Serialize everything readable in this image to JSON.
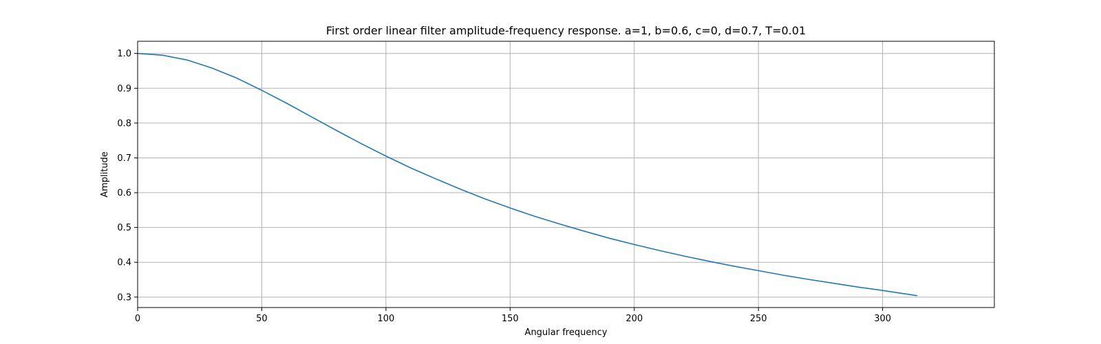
{
  "chart_data": {
    "type": "line",
    "title": "First order linear filter amplitude-frequency response. a=1, b=0.6, c=0, d=0.7, T=0.01",
    "xlabel": "Angular frequency",
    "ylabel": "Amplitude",
    "xlim": [
      0,
      345
    ],
    "ylim": [
      0.27,
      1.035
    ],
    "x_ticks": [
      0,
      50,
      100,
      150,
      200,
      250,
      300
    ],
    "y_ticks": [
      0.3,
      0.4,
      0.5,
      0.6,
      0.7,
      0.8,
      0.9,
      1.0
    ],
    "x_tick_labels": [
      "0",
      "50",
      "100",
      "150",
      "200",
      "250",
      "300"
    ],
    "y_tick_labels": [
      "0.3",
      "0.4",
      "0.5",
      "0.6",
      "0.7",
      "0.8",
      "0.9",
      "1.0"
    ],
    "grid": true,
    "series": [
      {
        "color": "#1f77b4",
        "x": [
          0,
          10,
          20,
          30,
          40,
          50,
          60,
          70,
          80,
          90,
          100,
          110,
          120,
          130,
          140,
          150,
          160,
          170,
          180,
          190,
          200,
          210,
          220,
          230,
          240,
          250,
          260,
          270,
          280,
          290,
          300,
          314
        ],
        "y": [
          1.0,
          0.995,
          0.981,
          0.958,
          0.929,
          0.894,
          0.857,
          0.818,
          0.779,
          0.741,
          0.705,
          0.671,
          0.64,
          0.61,
          0.582,
          0.556,
          0.532,
          0.51,
          0.489,
          0.469,
          0.451,
          0.434,
          0.418,
          0.403,
          0.389,
          0.376,
          0.363,
          0.351,
          0.34,
          0.329,
          0.319,
          0.304
        ]
      }
    ]
  }
}
